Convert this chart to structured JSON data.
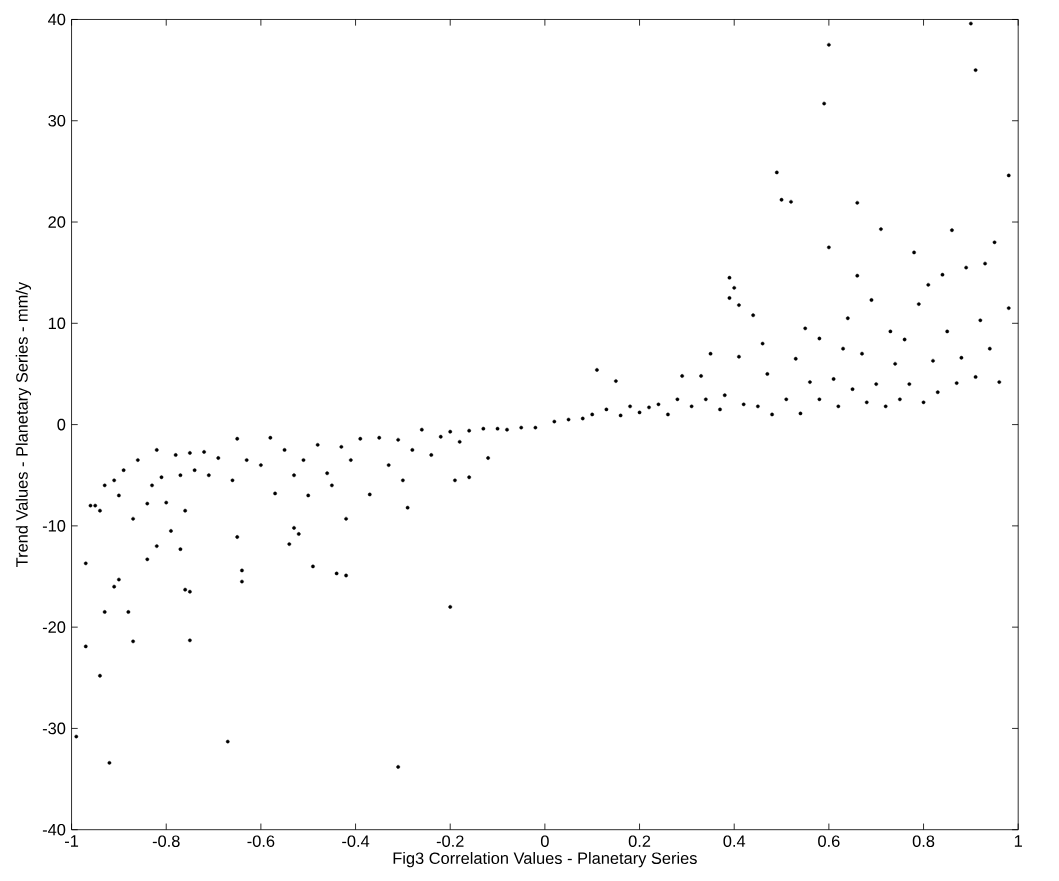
{
  "chart_data": {
    "type": "scatter",
    "xlabel": "Fig3   Correlation Values - Planetary Series",
    "ylabel": "Trend Values - Planetary Series - mm/y",
    "xlim": [
      -1,
      1
    ],
    "ylim": [
      -40,
      40
    ],
    "xticks": [
      -1,
      -0.8,
      -0.6,
      -0.4,
      -0.2,
      0,
      0.2,
      0.4,
      0.6,
      0.8,
      1
    ],
    "yticks": [
      -40,
      -30,
      -20,
      -10,
      0,
      10,
      20,
      30,
      40
    ],
    "grid": false,
    "marker": "circle",
    "series": [
      {
        "color": "#000000",
        "x": [
          -0.99,
          -0.97,
          -0.97,
          -0.95,
          -0.94,
          -0.93,
          -0.92,
          -0.91,
          -0.9,
          -0.88,
          -0.87,
          -0.84,
          -0.82,
          -0.79,
          -0.77,
          -0.76,
          -0.75,
          -0.75,
          -0.67,
          -0.65,
          -0.64,
          -0.64,
          -0.53,
          -0.52,
          -0.54,
          -0.49,
          -0.44,
          -0.42,
          -0.42,
          -0.31,
          -0.29,
          -0.2,
          -0.19,
          -0.16,
          -0.12,
          -0.96,
          -0.94,
          -0.93,
          -0.91,
          -0.9,
          -0.89,
          -0.87,
          -0.86,
          -0.84,
          -0.83,
          -0.82,
          -0.81,
          -0.8,
          -0.78,
          -0.77,
          -0.76,
          -0.75,
          -0.74,
          -0.72,
          -0.71,
          -0.69,
          -0.66,
          -0.65,
          -0.63,
          -0.6,
          -0.58,
          -0.57,
          -0.55,
          -0.53,
          -0.51,
          -0.5,
          -0.48,
          -0.46,
          -0.45,
          -0.43,
          -0.41,
          -0.39,
          -0.37,
          -0.35,
          -0.33,
          -0.31,
          -0.3,
          -0.28,
          -0.26,
          -0.24,
          -0.22,
          -0.2,
          -0.18,
          -0.16,
          -0.13,
          -0.1,
          -0.08,
          -0.05,
          -0.02,
          0.02,
          0.05,
          0.08,
          0.1,
          0.11,
          0.13,
          0.15,
          0.16,
          0.18,
          0.2,
          0.22,
          0.24,
          0.26,
          0.28,
          0.29,
          0.31,
          0.33,
          0.34,
          0.35,
          0.37,
          0.38,
          0.39,
          0.39,
          0.4,
          0.41,
          0.41,
          0.42,
          0.44,
          0.45,
          0.46,
          0.47,
          0.48,
          0.49,
          0.5,
          0.51,
          0.52,
          0.53,
          0.54,
          0.55,
          0.56,
          0.58,
          0.58,
          0.59,
          0.6,
          0.6,
          0.61,
          0.62,
          0.63,
          0.64,
          0.65,
          0.66,
          0.66,
          0.67,
          0.68,
          0.69,
          0.7,
          0.71,
          0.72,
          0.73,
          0.74,
          0.75,
          0.76,
          0.77,
          0.78,
          0.79,
          0.8,
          0.81,
          0.82,
          0.83,
          0.84,
          0.85,
          0.86,
          0.87,
          0.88,
          0.89,
          0.9,
          0.91,
          0.91,
          0.92,
          0.93,
          0.94,
          0.95,
          0.96,
          0.98,
          0.98
        ],
        "values": [
          -30.8,
          -13.7,
          -21.9,
          -8,
          -24.8,
          -18.5,
          -33.4,
          -16,
          -15.3,
          -18.5,
          -21.4,
          -13.3,
          -12,
          -10.5,
          -12.3,
          -16.3,
          -16.5,
          -21.3,
          -31.3,
          -11.1,
          -14.4,
          -15.5,
          -10.2,
          -10.8,
          -11.8,
          -14,
          -14.7,
          -14.9,
          -9.3,
          -33.8,
          -8.2,
          -18,
          -5.5,
          -5.2,
          -3.3,
          -8,
          -8.5,
          -6,
          -5.5,
          -7,
          -4.5,
          -9.3,
          -3.5,
          -7.8,
          -6,
          -2.5,
          -5.2,
          -7.7,
          -3,
          -5,
          -8.5,
          -2.8,
          -4.5,
          -2.7,
          -5,
          -3.3,
          -5.5,
          -1.4,
          -3.5,
          -4,
          -1.3,
          -6.8,
          -2.5,
          -5,
          -3.5,
          -7,
          -2,
          -4.8,
          -6,
          -2.2,
          -3.5,
          -1.4,
          -6.9,
          -1.3,
          -4,
          -1.5,
          -5.5,
          -2.5,
          -0.5,
          -3,
          -1.2,
          -0.7,
          -1.7,
          -0.6,
          -0.4,
          -0.4,
          -0.5,
          -0.3,
          -0.3,
          0.3,
          0.5,
          0.6,
          1,
          5.4,
          1.5,
          4.3,
          0.9,
          1.8,
          1.2,
          1.7,
          2,
          1,
          2.5,
          4.8,
          1.8,
          4.8,
          2.5,
          7,
          1.5,
          2.9,
          14.5,
          12.5,
          13.5,
          11.8,
          6.7,
          2,
          10.8,
          1.8,
          8,
          5,
          1,
          24.9,
          22.2,
          2.5,
          22,
          6.5,
          1.1,
          9.5,
          4.2,
          2.5,
          8.5,
          31.7,
          37.5,
          17.5,
          4.5,
          1.8,
          7.5,
          10.5,
          3.5,
          21.9,
          14.7,
          7,
          2.2,
          12.3,
          4,
          19.3,
          1.8,
          9.2,
          6,
          2.5,
          8.4,
          4,
          17,
          11.9,
          2.2,
          13.8,
          6.3,
          3.2,
          14.8,
          9.2,
          19.2,
          4.1,
          6.6,
          15.5,
          39.6,
          35,
          4.7,
          10.3,
          15.9,
          7.5,
          18,
          4.2,
          24.6,
          11.5
        ]
      }
    ]
  }
}
